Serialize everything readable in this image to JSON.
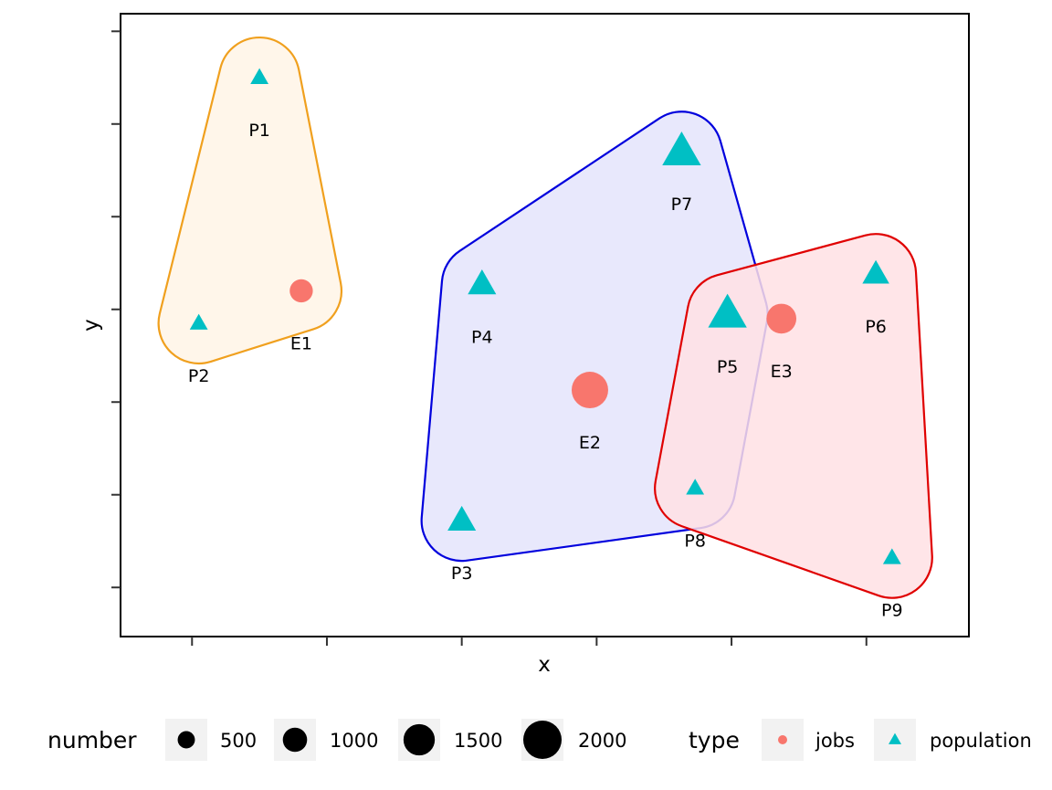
{
  "chart_data": {
    "type": "scatter",
    "xlabel": "x",
    "ylabel": "y",
    "xlim": [
      -0.53,
      5.76
    ],
    "ylim": [
      -0.53,
      6.19
    ],
    "x_ticks": [
      0,
      1,
      2,
      3,
      4,
      5
    ],
    "y_ticks": [
      0,
      1,
      2,
      3,
      4,
      5,
      6
    ],
    "tick_labels_shown": false,
    "grid": false,
    "colors": {
      "jobs": "#F8766D",
      "population": "#00BFC4"
    },
    "points": [
      {
        "label": "P1",
        "x": 0.5,
        "y": 5.5,
        "type": "population",
        "number": 500
      },
      {
        "label": "P2",
        "x": 0.05,
        "y": 2.85,
        "type": "population",
        "number": 500
      },
      {
        "label": "E1",
        "x": 0.81,
        "y": 3.2,
        "type": "jobs",
        "number": 1000
      },
      {
        "label": "P3",
        "x": 2.0,
        "y": 0.72,
        "type": "population",
        "number": 1200
      },
      {
        "label": "P4",
        "x": 2.15,
        "y": 3.27,
        "type": "population",
        "number": 1200
      },
      {
        "label": "E2",
        "x": 2.95,
        "y": 2.13,
        "type": "jobs",
        "number": 2000
      },
      {
        "label": "P7",
        "x": 3.63,
        "y": 4.7,
        "type": "population",
        "number": 1900
      },
      {
        "label": "P5",
        "x": 3.97,
        "y": 2.95,
        "type": "population",
        "number": 1900
      },
      {
        "label": "E3",
        "x": 4.37,
        "y": 2.9,
        "type": "jobs",
        "number": 1500
      },
      {
        "label": "P6",
        "x": 5.07,
        "y": 3.38,
        "type": "population",
        "number": 1100
      },
      {
        "label": "P8",
        "x": 3.73,
        "y": 1.07,
        "type": "population",
        "number": 500
      },
      {
        "label": "P9",
        "x": 5.19,
        "y": 0.32,
        "type": "population",
        "number": 500
      }
    ],
    "groups": [
      {
        "members": [
          "P1",
          "P2",
          "E1"
        ],
        "fill": "#FFF5E6",
        "stroke": "#F0A01E"
      },
      {
        "members": [
          "P3",
          "P4",
          "P7",
          "P5",
          "P8"
        ],
        "fill": "#E4E4FB",
        "stroke": "#0000DD"
      },
      {
        "members": [
          "P5",
          "E3",
          "P6",
          "P9",
          "P8"
        ],
        "fill": "#FFE1E4",
        "stroke": "#E00000"
      }
    ],
    "legend": {
      "placement": "bottom",
      "number": {
        "title": "number",
        "entries": [
          500,
          1000,
          1500,
          2000
        ]
      },
      "type": {
        "title": "type",
        "entries": [
          "jobs",
          "population"
        ]
      }
    }
  }
}
